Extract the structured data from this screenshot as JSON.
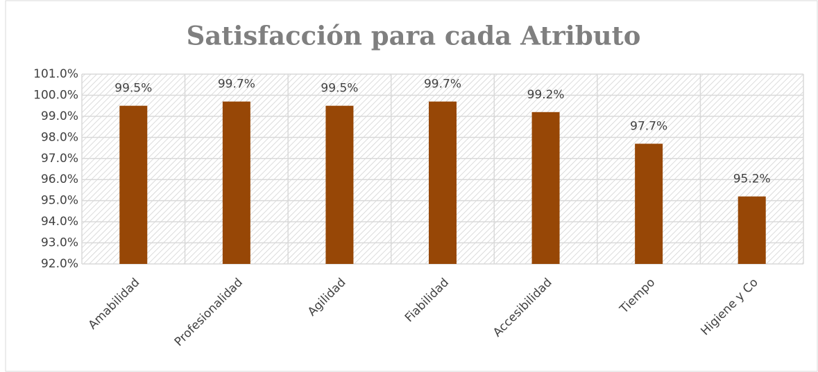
{
  "chart_data": {
    "type": "bar",
    "title": "Satisfacción para cada Atributo",
    "categories": [
      "Amabilidad",
      "Profesionalidad",
      "Agilidad",
      "Fiabilidad",
      "Accesibilidad",
      "Tiempo",
      "Higiene y Co"
    ],
    "values": [
      99.5,
      99.7,
      99.5,
      99.7,
      99.2,
      97.7,
      95.2
    ],
    "value_labels": [
      "99.5%",
      "99.7%",
      "99.5%",
      "99.7%",
      "99.2%",
      "97.7%",
      "95.2%"
    ],
    "color": "#974706",
    "ylim": [
      92,
      101
    ],
    "yticks": [
      {
        "value": 92,
        "label": "92.0%"
      },
      {
        "value": 93,
        "label": "93.0%"
      },
      {
        "value": 94,
        "label": "94.0%"
      },
      {
        "value": 95,
        "label": "95.0%"
      },
      {
        "value": 96,
        "label": "96.0%"
      },
      {
        "value": 97,
        "label": "97.0%"
      },
      {
        "value": 98,
        "label": "98.0%"
      },
      {
        "value": 99,
        "label": "99.0%"
      },
      {
        "value": 100,
        "label": "100.0%"
      },
      {
        "value": 101,
        "label": "101.0%"
      }
    ],
    "grid": true
  }
}
